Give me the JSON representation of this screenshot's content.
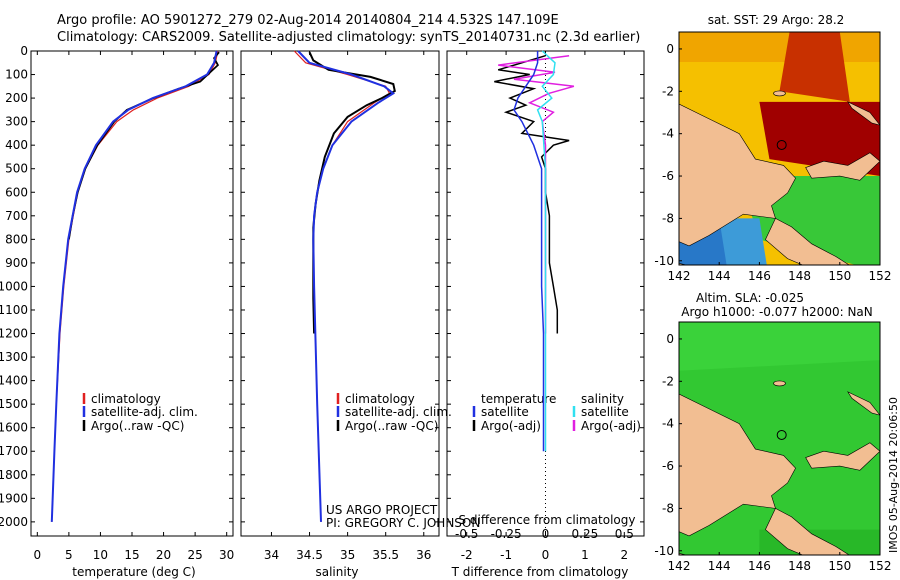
{
  "header": {
    "line1": "Argo profile: AO 5901272_279 02-Aug-2014 20140804_214 4.532S 147.109E",
    "line2": "Climatology: CARS2009. Satellite-adjusted climatology: synTS_20140731.nc (2.3d earlier)"
  },
  "depth_axis": {
    "ticks": [
      0,
      100,
      200,
      300,
      400,
      500,
      600,
      700,
      800,
      900,
      1000,
      1100,
      1200,
      1300,
      1400,
      1500,
      1600,
      1700,
      1800,
      1900,
      2000
    ],
    "range": [
      0,
      2060
    ]
  },
  "colors": {
    "clim": "#e02020",
    "sat": "#2030e0",
    "argo": "#000000",
    "sat_s": "#30e0f0",
    "argo_s": "#e020e0",
    "land": "#f2be92",
    "ocean_green": "#30c830"
  },
  "chart_data": [
    {
      "type": "line",
      "xlabel": "temperature (deg C)",
      "xlim": [
        -1,
        31
      ],
      "xticks": [
        0,
        5,
        10,
        15,
        20,
        25,
        30
      ],
      "legend": [
        "climatology",
        "satellite-adj. clim.",
        "Argo(..raw -QC)"
      ],
      "series": [
        {
          "name": "climatology",
          "depth": [
            0,
            50,
            100,
            150,
            200,
            250,
            300,
            400,
            500,
            600,
            800,
            1000,
            1200,
            1500,
            1700,
            2000
          ],
          "values": [
            28.6,
            28.2,
            27.2,
            24.0,
            19.0,
            15.2,
            12.6,
            9.6,
            7.6,
            6.4,
            5.0,
            4.2,
            3.6,
            3.0,
            2.7,
            2.3
          ]
        },
        {
          "name": "satellite-adj. clim.",
          "depth": [
            0,
            50,
            100,
            150,
            200,
            250,
            300,
            400,
            500,
            600,
            800,
            1000,
            1200,
            1500,
            1700,
            2000
          ],
          "values": [
            28.4,
            28.0,
            26.9,
            23.5,
            18.3,
            14.4,
            12.0,
            9.3,
            7.5,
            6.3,
            4.9,
            4.1,
            3.5,
            3.0,
            2.7,
            2.3
          ]
        },
        {
          "name": "Argo(..raw -QC)",
          "depth": [
            5,
            30,
            60,
            100,
            130,
            160,
            200,
            250,
            300,
            400,
            500,
            600,
            700,
            800
          ],
          "values": [
            28.8,
            28.0,
            28.6,
            27.0,
            25.8,
            22.4,
            18.4,
            14.2,
            12.2,
            9.5,
            7.6,
            6.4,
            5.6,
            5.0
          ]
        }
      ]
    },
    {
      "type": "line",
      "xlabel": "salinity",
      "xlim": [
        33.6,
        36.2
      ],
      "xticks": [
        34,
        34.5,
        35,
        35.5,
        36
      ],
      "legend": [
        "climatology",
        "satellite-adj. clim.",
        "Argo(..raw -QC)"
      ],
      "annotation": [
        "US ARGO PROJECT",
        "PI: GREGORY C. JOHNSON"
      ],
      "series": [
        {
          "name": "climatology",
          "depth": [
            0,
            50,
            100,
            150,
            180,
            220,
            300,
            400,
            500,
            600,
            700,
            800,
            1000,
            1500,
            2000
          ],
          "values": [
            34.3,
            34.45,
            35.0,
            35.5,
            35.55,
            35.35,
            35.0,
            34.8,
            34.68,
            34.6,
            34.56,
            34.55,
            34.56,
            34.6,
            34.65
          ]
        },
        {
          "name": "satellite-adj. clim.",
          "depth": [
            0,
            50,
            100,
            150,
            180,
            220,
            300,
            400,
            500,
            600,
            700,
            800,
            1000,
            1500,
            2000
          ],
          "values": [
            34.35,
            34.5,
            35.05,
            35.48,
            35.6,
            35.4,
            35.05,
            34.8,
            34.68,
            34.6,
            34.56,
            34.55,
            34.56,
            34.6,
            34.65
          ]
        },
        {
          "name": "Argo(..raw -QC)",
          "depth": [
            5,
            40,
            80,
            110,
            140,
            170,
            200,
            230,
            280,
            350,
            450,
            550,
            650,
            750,
            850,
            950,
            1050,
            1200
          ],
          "values": [
            34.5,
            34.55,
            34.75,
            35.3,
            35.6,
            35.62,
            35.45,
            35.25,
            35.0,
            34.82,
            34.7,
            34.63,
            34.58,
            34.55,
            34.55,
            34.55,
            34.55,
            34.56
          ]
        }
      ]
    },
    {
      "type": "line",
      "xlabel": "T difference from climatology",
      "xlabel2": "S difference from climatology",
      "xlim": [
        -2.5,
        2.5
      ],
      "xticks": [
        -2,
        -1,
        0,
        1,
        2
      ],
      "xticks2": [
        "-0.5",
        "-0.25",
        "0",
        "0.25",
        "0.5"
      ],
      "legend": [
        "temperature",
        "satellite",
        "Argo(-adj)",
        "salinity",
        "satellite",
        "Argo(-adj)"
      ],
      "series": [
        {
          "name": "T satellite",
          "depth": [
            0,
            50,
            100,
            150,
            200,
            250,
            300,
            400,
            500,
            600,
            800,
            1000,
            1200,
            1500,
            1700
          ],
          "values": [
            -0.2,
            -0.2,
            -0.3,
            -0.5,
            -0.7,
            -0.8,
            -0.6,
            -0.3,
            -0.1,
            -0.1,
            -0.1,
            -0.1,
            -0.05,
            -0.05,
            -0.05
          ]
        },
        {
          "name": "T Argo(-adj)",
          "depth": [
            20,
            50,
            80,
            100,
            130,
            160,
            200,
            230,
            260,
            300,
            350,
            380,
            400,
            450,
            500,
            600,
            700,
            800,
            900,
            1000,
            1100,
            1200
          ],
          "values": [
            0.0,
            -0.6,
            -1.2,
            -0.4,
            -1.3,
            -0.3,
            -0.9,
            -0.5,
            -1.0,
            -0.3,
            -0.6,
            0.6,
            0.2,
            -0.1,
            0.0,
            0.0,
            0.1,
            0.1,
            0.1,
            0.2,
            0.3,
            0.3
          ]
        },
        {
          "name": "S satellite",
          "depth": [
            0,
            50,
            100,
            150,
            200,
            250,
            300,
            400,
            500,
            700,
            1000,
            1500,
            1700
          ],
          "values": [
            -0.02,
            0.06,
            0.05,
            -0.02,
            0.04,
            -0.05,
            -0.02,
            -0.01,
            0.0,
            0.0,
            0.0,
            0.0,
            0.0
          ]
        },
        {
          "name": "S Argo(-adj)",
          "depth": [
            20,
            60,
            90,
            120,
            150,
            180,
            220,
            260,
            300,
            400,
            500,
            700,
            900,
            1200
          ],
          "values": [
            0.15,
            -0.3,
            0.06,
            -0.2,
            0.18,
            0.02,
            -0.1,
            0.05,
            -0.02,
            0.0,
            0.0,
            0.0,
            0.0,
            0.0
          ]
        }
      ]
    }
  ],
  "maps": {
    "top": {
      "title": "sat. SST: 29 Argo: 28.2",
      "xticks": [
        142,
        144,
        146,
        148,
        150,
        152
      ],
      "yticks": [
        0,
        -2,
        -4,
        -6,
        -8,
        -10
      ]
    },
    "bottom": {
      "title1": "Altim. SLA: -0.025",
      "title2": "Argo h1000: -0.077 h2000: NaN",
      "xticks": [
        142,
        144,
        146,
        148,
        150,
        152
      ],
      "yticks": [
        0,
        -2,
        -4,
        -6,
        -8,
        -10
      ]
    },
    "stamp": "IMOS 05-Aug-2014 20:06:50"
  }
}
